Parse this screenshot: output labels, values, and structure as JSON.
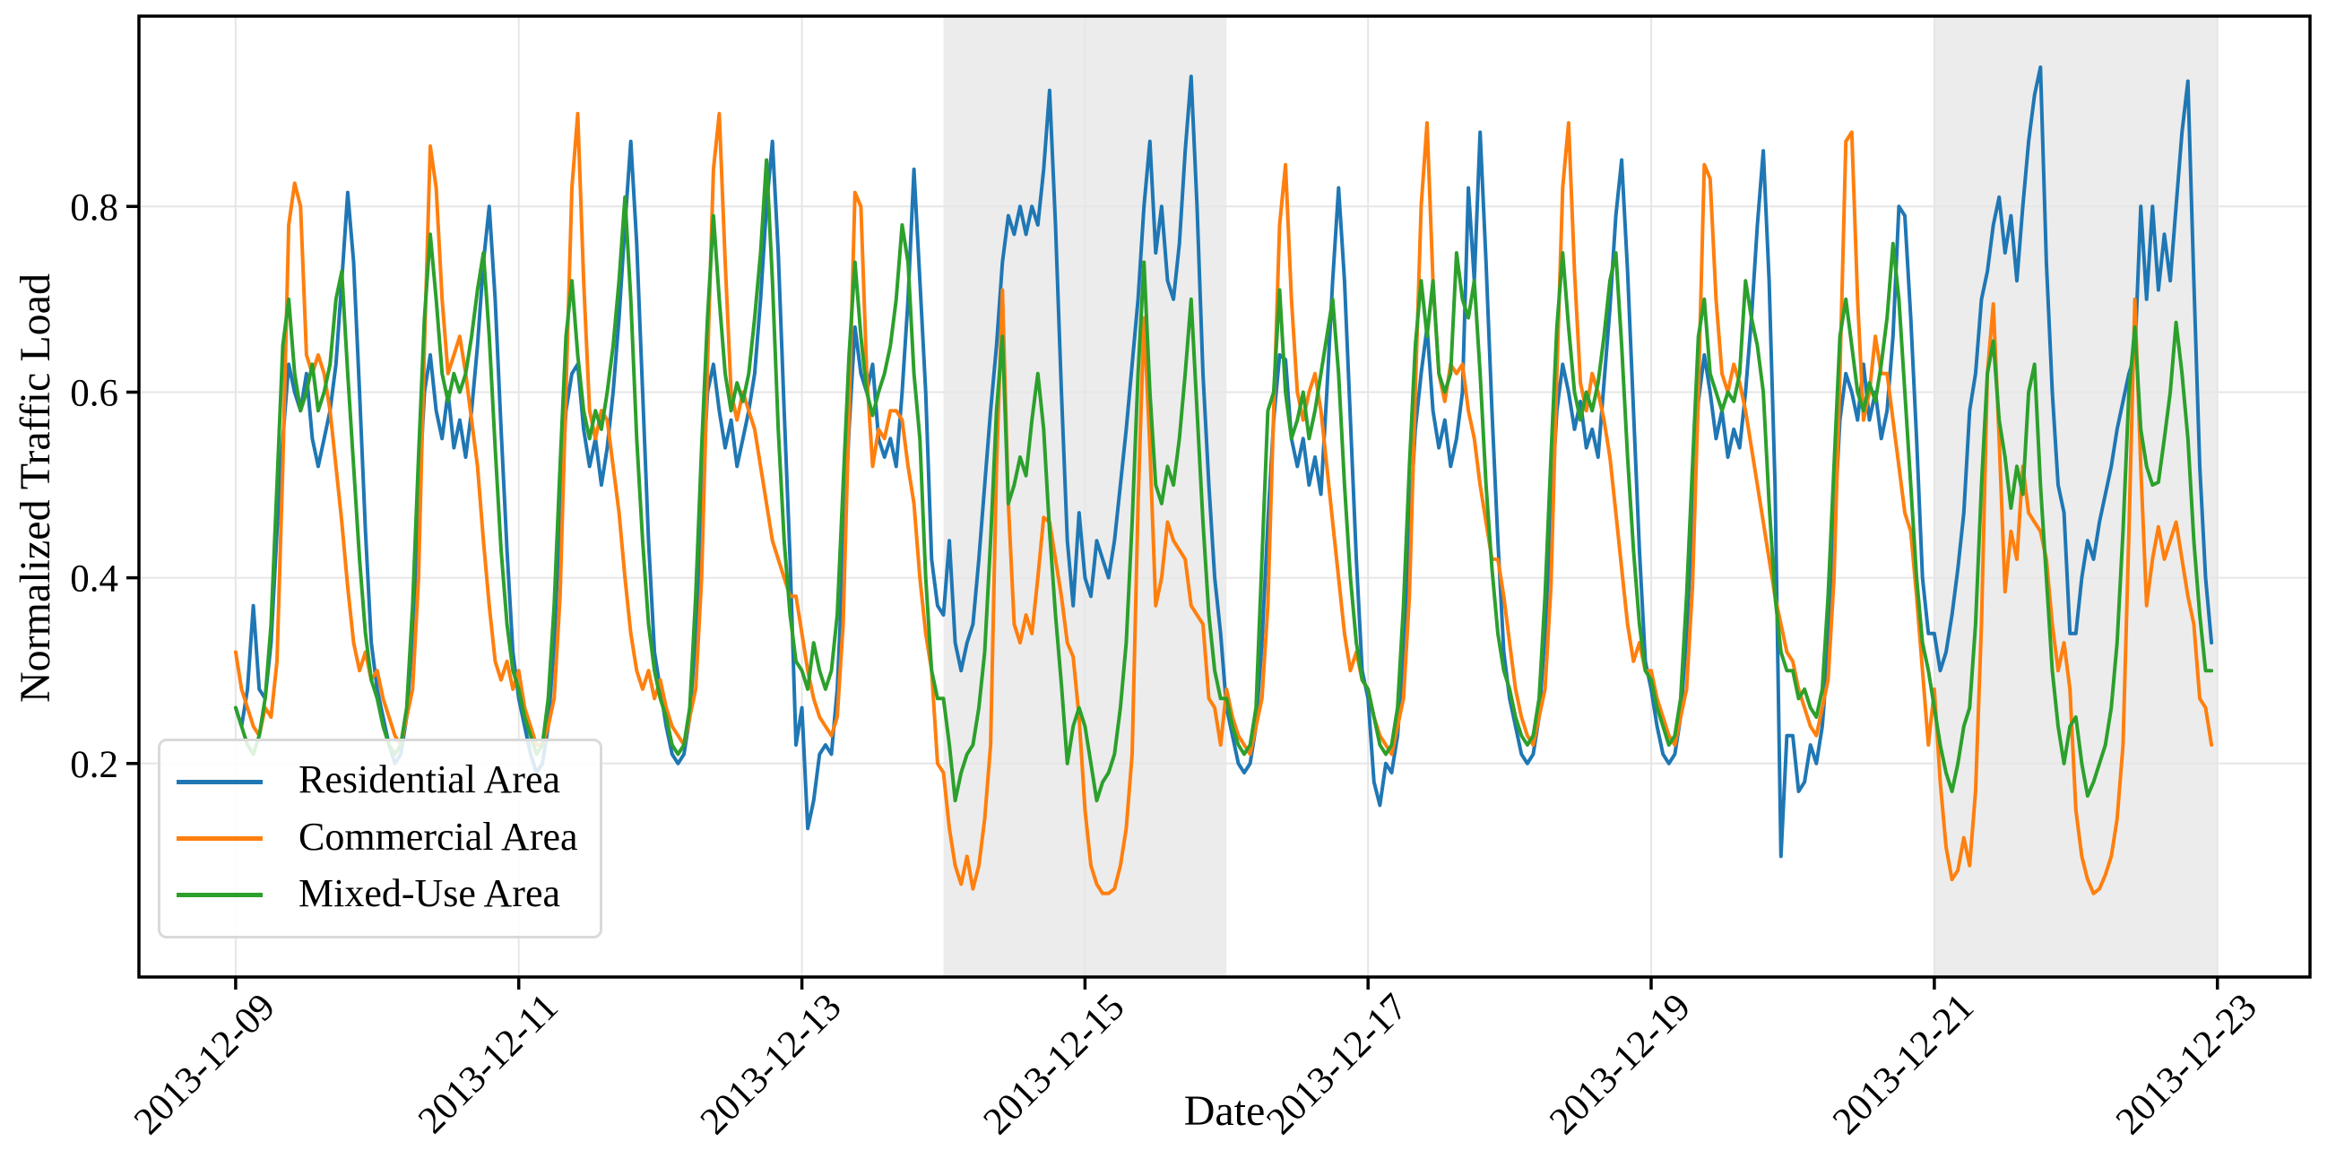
{
  "chart_data": {
    "type": "line",
    "title": "",
    "xlabel": "Date",
    "ylabel": "Normalized Traffic Load",
    "x_unit": "hours since 2013-12-09 00:00 (hourly samples, 14 days)",
    "x_tick_hours": [
      0,
      48,
      96,
      144,
      192,
      240,
      288,
      336
    ],
    "x_tick_labels": [
      "2013-12-09",
      "2013-12-11",
      "2013-12-13",
      "2013-12-15",
      "2013-12-17",
      "2013-12-19",
      "2013-12-21",
      "2013-12-23"
    ],
    "x_tick_rotation_deg": 45,
    "y_ticks": [
      0.2,
      0.4,
      0.6,
      0.8
    ],
    "y_tick_labels": [
      "0.2",
      "0.4",
      "0.6",
      "0.8"
    ],
    "xlim_hours": [
      -16.4,
      351.7
    ],
    "ylim": [
      -0.03,
      1.005
    ],
    "grid": true,
    "grid_color": "#e6e6e6",
    "background_color": "#ffffff",
    "spine_color": "#000000",
    "shaded_regions": [
      {
        "name": "weekend-highlight-1",
        "start_hour": 120,
        "end_hour": 168,
        "color": "#ececec"
      },
      {
        "name": "weekend-highlight-2",
        "start_hour": 288,
        "end_hour": 336,
        "color": "#ececec"
      }
    ],
    "legend": {
      "position": "lower left"
    },
    "series": [
      {
        "name": "Residential Area",
        "color": "#1f77b4",
        "values": [
          0.26,
          0.24,
          0.28,
          0.37,
          0.28,
          0.27,
          0.33,
          0.45,
          0.55,
          0.63,
          0.6,
          0.58,
          0.62,
          0.55,
          0.52,
          0.55,
          0.58,
          0.63,
          0.72,
          0.815,
          0.74,
          0.6,
          0.45,
          0.33,
          0.28,
          0.25,
          0.22,
          0.2,
          0.21,
          0.25,
          0.34,
          0.48,
          0.6,
          0.64,
          0.58,
          0.55,
          0.6,
          0.54,
          0.57,
          0.53,
          0.58,
          0.65,
          0.74,
          0.8,
          0.7,
          0.56,
          0.43,
          0.32,
          0.27,
          0.24,
          0.21,
          0.19,
          0.2,
          0.24,
          0.33,
          0.47,
          0.58,
          0.62,
          0.63,
          0.56,
          0.52,
          0.55,
          0.5,
          0.54,
          0.6,
          0.68,
          0.78,
          0.87,
          0.76,
          0.6,
          0.44,
          0.32,
          0.28,
          0.24,
          0.21,
          0.2,
          0.21,
          0.25,
          0.34,
          0.48,
          0.6,
          0.63,
          0.58,
          0.54,
          0.57,
          0.52,
          0.55,
          0.58,
          0.62,
          0.7,
          0.8,
          0.87,
          0.75,
          0.58,
          0.42,
          0.22,
          0.26,
          0.13,
          0.16,
          0.21,
          0.22,
          0.21,
          0.28,
          0.42,
          0.56,
          0.67,
          0.62,
          0.6,
          0.63,
          0.55,
          0.53,
          0.55,
          0.52,
          0.6,
          0.7,
          0.84,
          0.72,
          0.6,
          0.42,
          0.37,
          0.36,
          0.44,
          0.33,
          0.3,
          0.33,
          0.35,
          0.42,
          0.5,
          0.58,
          0.65,
          0.74,
          0.79,
          0.77,
          0.8,
          0.77,
          0.8,
          0.78,
          0.84,
          0.925,
          0.78,
          0.6,
          0.44,
          0.37,
          0.47,
          0.4,
          0.38,
          0.44,
          0.42,
          0.4,
          0.44,
          0.5,
          0.56,
          0.63,
          0.7,
          0.8,
          0.87,
          0.75,
          0.8,
          0.72,
          0.7,
          0.76,
          0.86,
          0.94,
          0.8,
          0.62,
          0.5,
          0.4,
          0.34,
          0.26,
          0.23,
          0.2,
          0.19,
          0.2,
          0.24,
          0.33,
          0.46,
          0.57,
          0.64,
          0.635,
          0.55,
          0.52,
          0.55,
          0.5,
          0.53,
          0.49,
          0.6,
          0.72,
          0.82,
          0.72,
          0.57,
          0.42,
          0.3,
          0.27,
          0.18,
          0.155,
          0.2,
          0.19,
          0.23,
          0.32,
          0.45,
          0.56,
          0.62,
          0.67,
          0.58,
          0.54,
          0.57,
          0.52,
          0.55,
          0.6,
          0.82,
          0.72,
          0.88,
          0.74,
          0.58,
          0.44,
          0.32,
          0.27,
          0.24,
          0.21,
          0.2,
          0.21,
          0.25,
          0.34,
          0.47,
          0.58,
          0.63,
          0.6,
          0.56,
          0.59,
          0.54,
          0.56,
          0.53,
          0.61,
          0.69,
          0.79,
          0.85,
          0.73,
          0.58,
          0.43,
          0.31,
          0.28,
          0.24,
          0.21,
          0.2,
          0.21,
          0.25,
          0.34,
          0.47,
          0.59,
          0.64,
          0.6,
          0.55,
          0.58,
          0.53,
          0.56,
          0.54,
          0.6,
          0.68,
          0.78,
          0.86,
          0.72,
          0.5,
          0.1,
          0.23,
          0.23,
          0.17,
          0.18,
          0.22,
          0.2,
          0.24,
          0.32,
          0.45,
          0.57,
          0.62,
          0.6,
          0.57,
          0.63,
          0.57,
          0.6,
          0.55,
          0.58,
          0.66,
          0.8,
          0.79,
          0.68,
          0.55,
          0.4,
          0.34,
          0.34,
          0.3,
          0.32,
          0.36,
          0.41,
          0.47,
          0.58,
          0.62,
          0.7,
          0.73,
          0.78,
          0.81,
          0.75,
          0.79,
          0.72,
          0.8,
          0.87,
          0.92,
          0.95,
          0.74,
          0.6,
          0.5,
          0.47,
          0.34,
          0.34,
          0.4,
          0.44,
          0.42,
          0.46,
          0.49,
          0.52,
          0.56,
          0.59,
          0.62,
          0.64,
          0.8,
          0.7,
          0.8,
          0.71,
          0.77,
          0.72,
          0.8,
          0.88,
          0.935,
          0.72,
          0.52,
          0.4,
          0.33
        ]
      },
      {
        "name": "Commercial Area",
        "color": "#ff7f0e",
        "values": [
          0.32,
          0.28,
          0.26,
          0.24,
          0.23,
          0.26,
          0.25,
          0.31,
          0.52,
          0.78,
          0.825,
          0.8,
          0.64,
          0.62,
          0.64,
          0.62,
          0.58,
          0.52,
          0.46,
          0.39,
          0.33,
          0.3,
          0.32,
          0.29,
          0.3,
          0.27,
          0.25,
          0.23,
          0.22,
          0.25,
          0.28,
          0.4,
          0.65,
          0.865,
          0.82,
          0.7,
          0.62,
          0.64,
          0.66,
          0.62,
          0.57,
          0.52,
          0.44,
          0.37,
          0.31,
          0.29,
          0.31,
          0.28,
          0.3,
          0.26,
          0.24,
          0.22,
          0.22,
          0.24,
          0.27,
          0.38,
          0.6,
          0.82,
          0.9,
          0.72,
          0.58,
          0.55,
          0.58,
          0.57,
          0.52,
          0.47,
          0.4,
          0.34,
          0.3,
          0.28,
          0.3,
          0.27,
          0.29,
          0.26,
          0.24,
          0.23,
          0.22,
          0.25,
          0.28,
          0.4,
          0.63,
          0.84,
          0.9,
          0.74,
          0.6,
          0.57,
          0.6,
          0.58,
          0.56,
          0.52,
          0.48,
          0.44,
          0.42,
          0.4,
          0.38,
          0.38,
          0.34,
          0.3,
          0.27,
          0.25,
          0.24,
          0.23,
          0.25,
          0.35,
          0.58,
          0.815,
          0.8,
          0.62,
          0.52,
          0.56,
          0.55,
          0.58,
          0.58,
          0.57,
          0.52,
          0.48,
          0.4,
          0.34,
          0.3,
          0.2,
          0.19,
          0.13,
          0.09,
          0.07,
          0.1,
          0.065,
          0.09,
          0.14,
          0.22,
          0.52,
          0.71,
          0.48,
          0.35,
          0.33,
          0.36,
          0.34,
          0.4,
          0.465,
          0.46,
          0.42,
          0.38,
          0.33,
          0.315,
          0.25,
          0.15,
          0.09,
          0.07,
          0.06,
          0.06,
          0.065,
          0.09,
          0.13,
          0.21,
          0.48,
          0.68,
          0.54,
          0.37,
          0.4,
          0.46,
          0.44,
          0.43,
          0.42,
          0.37,
          0.36,
          0.35,
          0.27,
          0.26,
          0.22,
          0.28,
          0.25,
          0.23,
          0.22,
          0.21,
          0.24,
          0.27,
          0.37,
          0.58,
          0.78,
          0.845,
          0.7,
          0.6,
          0.57,
          0.6,
          0.62,
          0.58,
          0.52,
          0.46,
          0.4,
          0.34,
          0.3,
          0.32,
          0.29,
          0.28,
          0.25,
          0.23,
          0.22,
          0.21,
          0.24,
          0.27,
          0.38,
          0.6,
          0.8,
          0.89,
          0.72,
          0.62,
          0.59,
          0.63,
          0.62,
          0.63,
          0.58,
          0.55,
          0.5,
          0.46,
          0.42,
          0.42,
          0.38,
          0.33,
          0.28,
          0.25,
          0.23,
          0.22,
          0.25,
          0.28,
          0.39,
          0.62,
          0.82,
          0.89,
          0.73,
          0.61,
          0.58,
          0.62,
          0.6,
          0.57,
          0.53,
          0.47,
          0.41,
          0.35,
          0.31,
          0.33,
          0.3,
          0.3,
          0.27,
          0.25,
          0.23,
          0.22,
          0.25,
          0.28,
          0.39,
          0.6,
          0.845,
          0.83,
          0.7,
          0.62,
          0.6,
          0.63,
          0.61,
          0.58,
          0.54,
          0.5,
          0.46,
          0.42,
          0.38,
          0.35,
          0.32,
          0.31,
          0.28,
          0.26,
          0.24,
          0.23,
          0.26,
          0.29,
          0.4,
          0.62,
          0.87,
          0.88,
          0.7,
          0.57,
          0.6,
          0.66,
          0.62,
          0.62,
          0.57,
          0.52,
          0.47,
          0.45,
          0.38,
          0.3,
          0.22,
          0.28,
          0.18,
          0.11,
          0.075,
          0.085,
          0.12,
          0.09,
          0.17,
          0.35,
          0.62,
          0.695,
          0.55,
          0.385,
          0.45,
          0.42,
          0.52,
          0.47,
          0.46,
          0.45,
          0.42,
          0.35,
          0.3,
          0.33,
          0.28,
          0.15,
          0.1,
          0.075,
          0.06,
          0.065,
          0.08,
          0.1,
          0.14,
          0.22,
          0.45,
          0.7,
          0.52,
          0.37,
          0.42,
          0.455,
          0.42,
          0.44,
          0.46,
          0.42,
          0.38,
          0.35,
          0.27,
          0.26,
          0.22
        ]
      },
      {
        "name": "Mixed-Use Area",
        "color": "#2ca02c",
        "values": [
          0.26,
          0.24,
          0.22,
          0.21,
          0.23,
          0.27,
          0.35,
          0.5,
          0.65,
          0.7,
          0.62,
          0.58,
          0.6,
          0.63,
          0.58,
          0.6,
          0.63,
          0.7,
          0.73,
          0.62,
          0.52,
          0.42,
          0.34,
          0.29,
          0.27,
          0.24,
          0.22,
          0.21,
          0.22,
          0.26,
          0.37,
          0.53,
          0.68,
          0.77,
          0.7,
          0.62,
          0.59,
          0.62,
          0.6,
          0.62,
          0.66,
          0.71,
          0.75,
          0.66,
          0.54,
          0.43,
          0.35,
          0.3,
          0.28,
          0.25,
          0.23,
          0.21,
          0.22,
          0.27,
          0.37,
          0.52,
          0.66,
          0.72,
          0.64,
          0.58,
          0.55,
          0.58,
          0.56,
          0.6,
          0.65,
          0.72,
          0.81,
          0.7,
          0.55,
          0.44,
          0.35,
          0.3,
          0.27,
          0.25,
          0.22,
          0.21,
          0.22,
          0.26,
          0.38,
          0.54,
          0.68,
          0.79,
          0.7,
          0.62,
          0.58,
          0.61,
          0.59,
          0.62,
          0.68,
          0.75,
          0.85,
          0.72,
          0.56,
          0.44,
          0.36,
          0.31,
          0.3,
          0.28,
          0.33,
          0.3,
          0.28,
          0.3,
          0.36,
          0.5,
          0.64,
          0.74,
          0.66,
          0.6,
          0.575,
          0.6,
          0.62,
          0.65,
          0.7,
          0.78,
          0.74,
          0.62,
          0.55,
          0.4,
          0.3,
          0.27,
          0.27,
          0.22,
          0.16,
          0.19,
          0.21,
          0.22,
          0.26,
          0.32,
          0.44,
          0.58,
          0.66,
          0.48,
          0.5,
          0.53,
          0.51,
          0.57,
          0.62,
          0.56,
          0.45,
          0.36,
          0.285,
          0.2,
          0.24,
          0.26,
          0.24,
          0.2,
          0.16,
          0.18,
          0.19,
          0.21,
          0.26,
          0.33,
          0.46,
          0.62,
          0.74,
          0.6,
          0.5,
          0.48,
          0.52,
          0.5,
          0.55,
          0.62,
          0.7,
          0.58,
          0.46,
          0.36,
          0.3,
          0.27,
          0.27,
          0.24,
          0.22,
          0.21,
          0.22,
          0.26,
          0.42,
          0.58,
          0.6,
          0.71,
          0.6,
          0.55,
          0.57,
          0.6,
          0.55,
          0.58,
          0.62,
          0.66,
          0.7,
          0.62,
          0.5,
          0.4,
          0.33,
          0.29,
          0.28,
          0.25,
          0.22,
          0.21,
          0.22,
          0.26,
          0.37,
          0.52,
          0.65,
          0.72,
          0.66,
          0.72,
          0.62,
          0.6,
          0.62,
          0.75,
          0.7,
          0.68,
          0.72,
          0.62,
          0.5,
          0.41,
          0.34,
          0.3,
          0.28,
          0.25,
          0.23,
          0.22,
          0.23,
          0.27,
          0.38,
          0.53,
          0.67,
          0.75,
          0.67,
          0.6,
          0.57,
          0.6,
          0.58,
          0.61,
          0.66,
          0.72,
          0.75,
          0.65,
          0.53,
          0.43,
          0.35,
          0.3,
          0.29,
          0.26,
          0.24,
          0.22,
          0.23,
          0.27,
          0.38,
          0.52,
          0.66,
          0.7,
          0.62,
          0.6,
          0.58,
          0.6,
          0.59,
          0.62,
          0.72,
          0.68,
          0.65,
          0.6,
          0.48,
          0.38,
          0.32,
          0.3,
          0.3,
          0.27,
          0.28,
          0.26,
          0.25,
          0.28,
          0.38,
          0.52,
          0.66,
          0.7,
          0.65,
          0.6,
          0.58,
          0.61,
          0.59,
          0.63,
          0.68,
          0.76,
          0.7,
          0.6,
          0.5,
          0.4,
          0.33,
          0.3,
          0.26,
          0.22,
          0.19,
          0.17,
          0.2,
          0.24,
          0.26,
          0.35,
          0.5,
          0.62,
          0.655,
          0.57,
          0.53,
          0.475,
          0.52,
          0.49,
          0.6,
          0.63,
          0.5,
          0.4,
          0.3,
          0.24,
          0.2,
          0.24,
          0.25,
          0.2,
          0.165,
          0.18,
          0.2,
          0.22,
          0.26,
          0.33,
          0.45,
          0.6,
          0.67,
          0.56,
          0.52,
          0.5,
          0.503,
          0.55,
          0.6,
          0.675,
          0.62,
          0.55,
          0.44,
          0.36,
          0.3,
          0.3
        ]
      }
    ]
  }
}
